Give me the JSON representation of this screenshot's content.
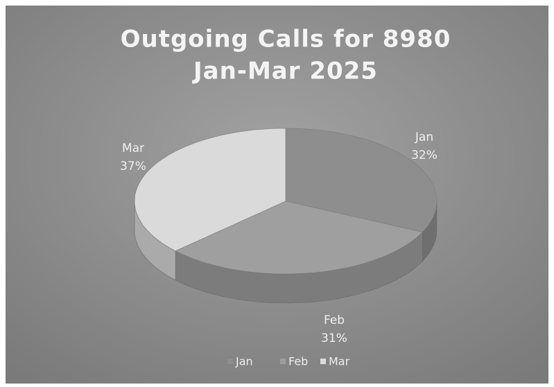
{
  "chart_data": {
    "type": "pie",
    "title": "Outgoing Calls for 8980",
    "subtitle": "Jan-Mar 2025",
    "categories": [
      "Jan",
      "Feb",
      "Mar"
    ],
    "values": [
      32,
      31,
      37
    ],
    "value_labels": [
      "32%",
      "31%",
      "37%"
    ],
    "colors": [
      "#8e8e8e",
      "#9f9f9f",
      "#dadada"
    ],
    "legend": "bottom"
  }
}
